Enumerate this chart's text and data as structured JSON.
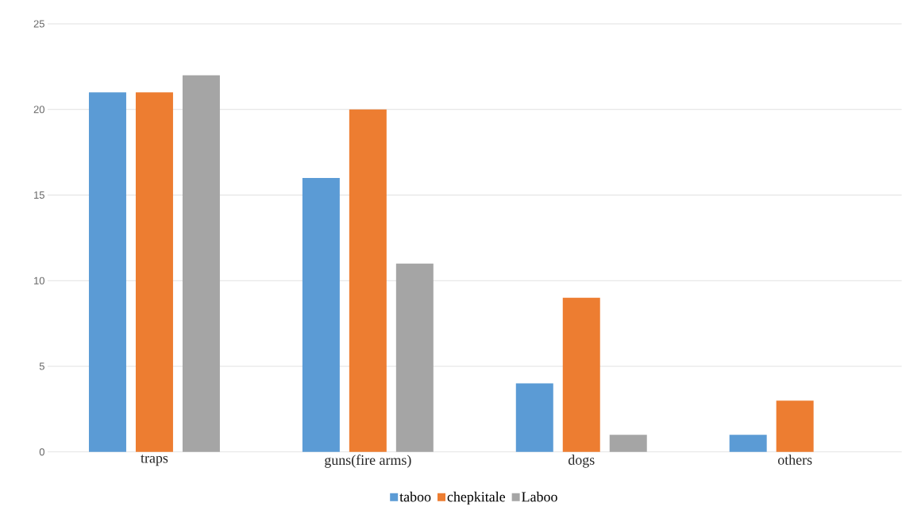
{
  "chart_data": {
    "type": "bar",
    "categories": [
      "traps",
      "guns(fire arms)",
      "dogs",
      "others"
    ],
    "series": [
      {
        "name": "taboo",
        "color": "#5b9bd5",
        "values": [
          21,
          16,
          4,
          1
        ]
      },
      {
        "name": "chepkitale",
        "color": "#ed7d31",
        "values": [
          21,
          20,
          9,
          3
        ]
      },
      {
        "name": "Laboo",
        "color": "#a5a5a5",
        "values": [
          22,
          11,
          1,
          null
        ]
      }
    ],
    "ylim": [
      0,
      25
    ],
    "yticks": [
      0,
      5,
      10,
      15,
      20,
      25
    ],
    "grid": "y",
    "legend": "bottom"
  }
}
